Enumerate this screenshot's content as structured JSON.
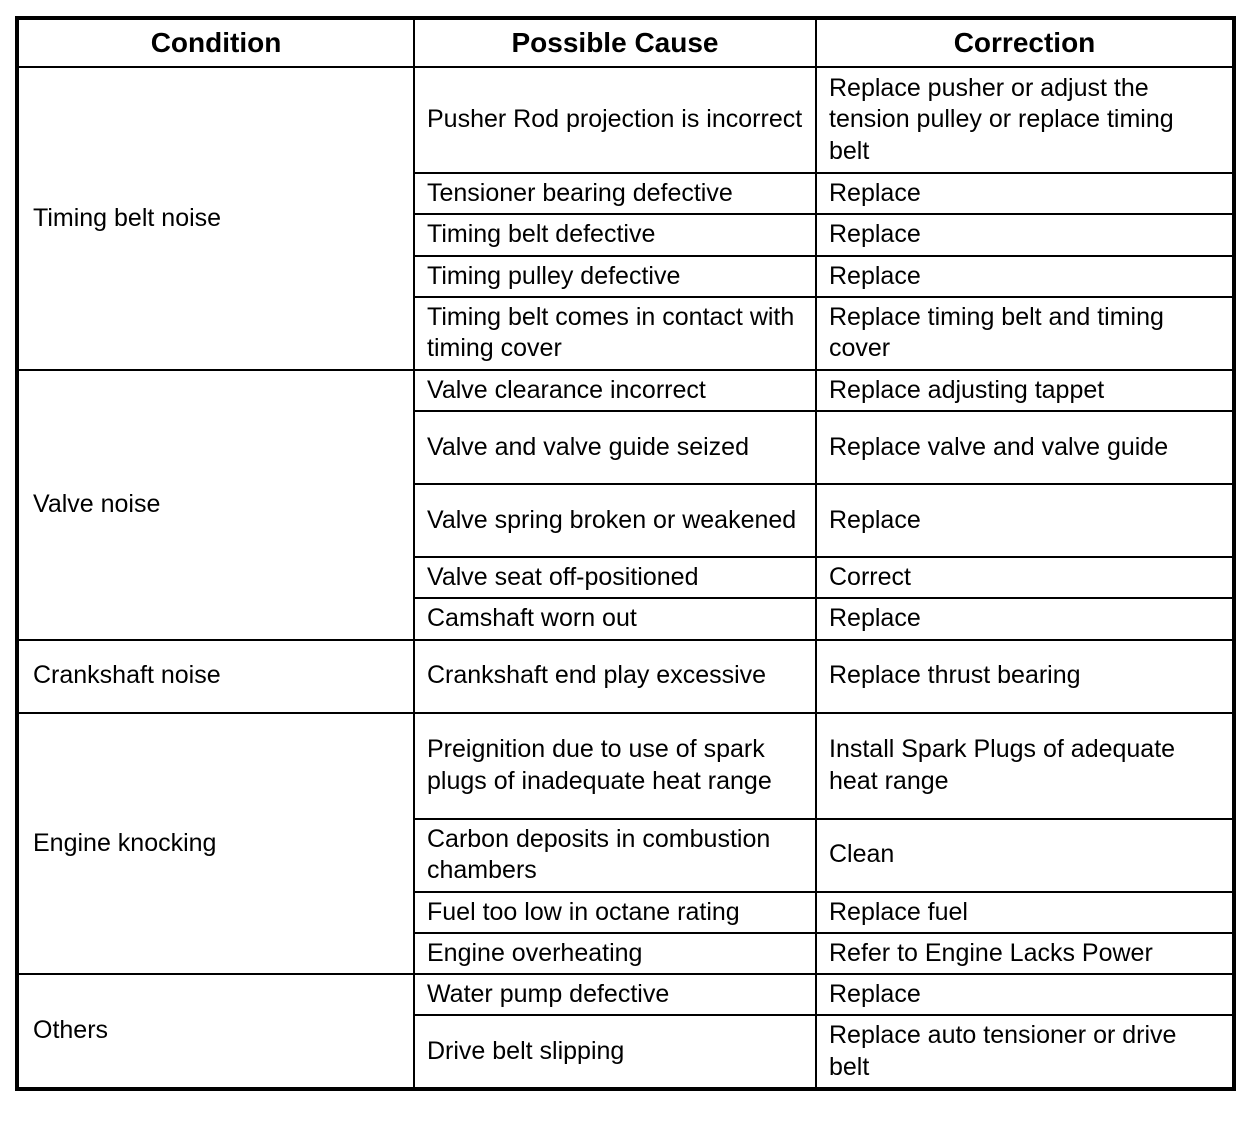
{
  "table": {
    "headers": [
      "Condition",
      "Possible Cause",
      "Correction"
    ],
    "groups": [
      {
        "condition": "Timing belt noise",
        "rows": [
          {
            "cause": "Pusher Rod projection is incorrect",
            "correction": "Replace pusher or adjust the tension pulley or replace timing belt"
          },
          {
            "cause": "Tensioner bearing defective",
            "correction": "Replace"
          },
          {
            "cause": "Timing belt defective",
            "correction": "Replace"
          },
          {
            "cause": "Timing pulley defective",
            "correction": "Replace"
          },
          {
            "cause": "Timing belt comes in contact with timing cover",
            "correction": "Replace timing belt and timing cover"
          }
        ]
      },
      {
        "condition": "Valve noise",
        "rows": [
          {
            "cause": "Valve clearance incorrect",
            "correction": "Replace adjusting tappet"
          },
          {
            "cause": "Valve and valve guide seized",
            "correction": "Replace valve and valve guide"
          },
          {
            "cause": "Valve spring broken or weakened",
            "correction": "Replace"
          },
          {
            "cause": "Valve seat off-positioned",
            "correction": "Correct"
          },
          {
            "cause": "Camshaft worn out",
            "correction": "Replace"
          }
        ]
      },
      {
        "condition": "Crankshaft noise",
        "rows": [
          {
            "cause": "Crankshaft end play excessive",
            "correction": "Replace thrust bearing"
          }
        ]
      },
      {
        "condition": "Engine knocking",
        "rows": [
          {
            "cause": "Preignition due to use of spark plugs of inadequate heat range",
            "correction": "Install Spark Plugs of adequate heat range"
          },
          {
            "cause": "Carbon deposits in combustion chambers",
            "correction": "Clean"
          },
          {
            "cause": "Fuel too low in octane rating",
            "correction": "Replace fuel"
          },
          {
            "cause": "Engine overheating",
            "correction": "Refer to Engine Lacks Power"
          }
        ]
      },
      {
        "condition": "Others",
        "rows": [
          {
            "cause": "Water pump defective",
            "correction": "Replace"
          },
          {
            "cause": "Drive belt slipping",
            "correction": "Replace auto tensioner or drive belt"
          }
        ]
      }
    ]
  }
}
